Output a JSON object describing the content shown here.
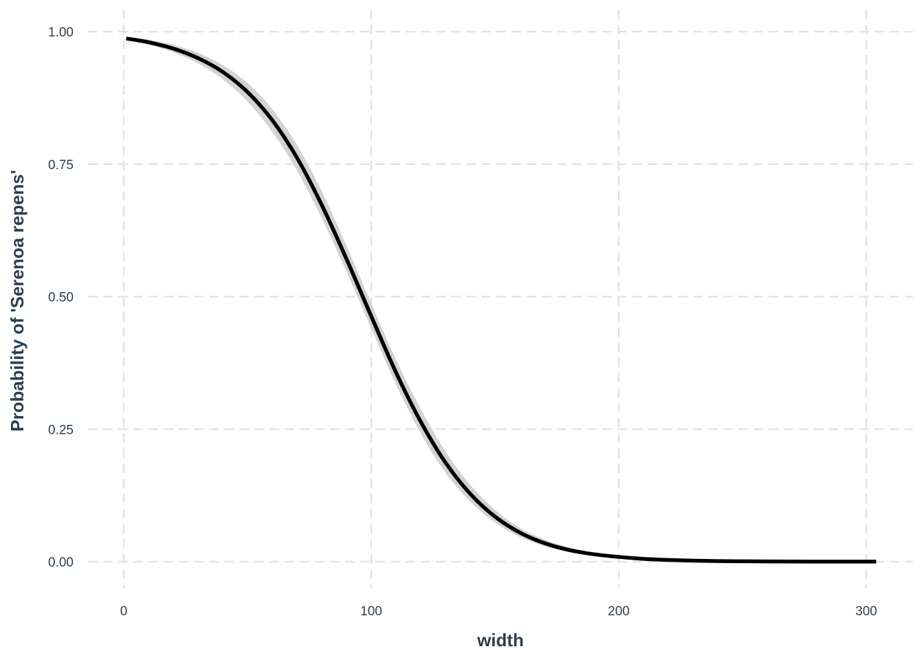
{
  "chart_data": {
    "type": "line",
    "title": "",
    "xlabel": "width",
    "ylabel": "Probability of 'Serenoa repens'",
    "xlim": [
      -15,
      320
    ],
    "ylim": [
      -0.05,
      1.03
    ],
    "x_ticks": [
      0,
      100,
      200,
      300
    ],
    "x_tick_labels": [
      "0",
      "100",
      "200",
      "300"
    ],
    "y_ticks": [
      0,
      0.25,
      0.5,
      0.75,
      1.0
    ],
    "y_tick_labels": [
      "0.00",
      "0.25",
      "0.50",
      "0.75",
      "1.00"
    ],
    "grid": true,
    "legend": "none",
    "series": [
      {
        "x": [
          1,
          10,
          20,
          30,
          40,
          50,
          60,
          70,
          80,
          90,
          100,
          110,
          120,
          130,
          140,
          150,
          160,
          170,
          180,
          190,
          200,
          210,
          220,
          230,
          240,
          250,
          260,
          270,
          280,
          290,
          300,
          304
        ],
        "values": [
          0.987,
          0.98,
          0.968,
          0.95,
          0.924,
          0.886,
          0.833,
          0.762,
          0.673,
          0.571,
          0.463,
          0.357,
          0.264,
          0.187,
          0.128,
          0.085,
          0.055,
          0.035,
          0.022,
          0.014,
          0.009,
          0.0054,
          0.0033,
          0.002,
          0.0012,
          0.0008,
          0.0005,
          0.0003,
          0.0002,
          0.0001,
          0.0001,
          0.0001
        ],
        "lower": [
          0.984,
          0.975,
          0.961,
          0.94,
          0.91,
          0.868,
          0.811,
          0.738,
          0.648,
          0.547,
          0.44,
          0.334,
          0.242,
          0.168,
          0.113,
          0.074,
          0.047,
          0.029,
          0.018,
          0.011,
          0.007,
          0.004,
          0.002,
          0.001,
          0.0007,
          0.0004,
          0.0002,
          0.0001,
          0.0001,
          0.0,
          0.0,
          0.0
        ],
        "upper": [
          0.99,
          0.985,
          0.975,
          0.96,
          0.937,
          0.903,
          0.854,
          0.786,
          0.699,
          0.596,
          0.487,
          0.381,
          0.288,
          0.208,
          0.145,
          0.098,
          0.064,
          0.042,
          0.027,
          0.017,
          0.011,
          0.007,
          0.0045,
          0.0029,
          0.0018,
          0.0012,
          0.0008,
          0.0005,
          0.0003,
          0.0002,
          0.0002,
          0.0002
        ],
        "color": "#000000",
        "ribbon_color": "#d3d3d3"
      }
    ],
    "colors": {
      "grid": "#e3e3e3",
      "text": "#2c3e50",
      "line": "#000000",
      "ribbon": "#d3d3d3"
    }
  }
}
